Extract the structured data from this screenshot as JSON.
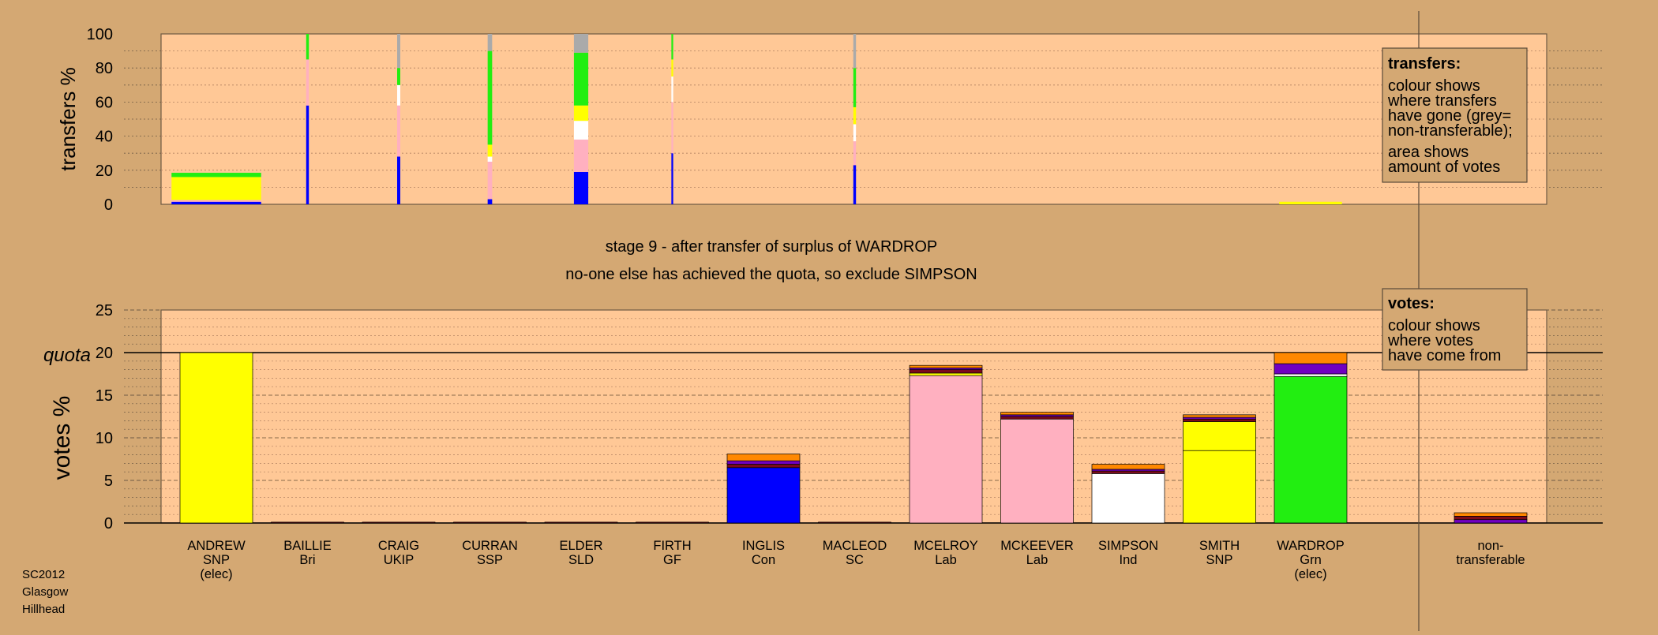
{
  "colors": {
    "background": "#d4a873",
    "plot_bg": "#ffc896",
    "SNP": "#ffff00",
    "Con": "#0000ff",
    "Lab": "#ffb0c0",
    "Ind": "#ffffff",
    "Grn": "#22ee11",
    "ukip": "#7000c0",
    "ssp": "#ff8800",
    "nt": "#aaaaaa",
    "dark": "#7a0a1a",
    "outline": "#000000"
  },
  "heading": {
    "line1": "stage 9 - after transfer of surplus of WARDROP",
    "line2": "no-one else has achieved the quota, so exclude SIMPSON"
  },
  "footer": {
    "line1": "SC2012",
    "line2": "Glasgow",
    "line3": "Hillhead"
  },
  "transfers_legend": {
    "title": "transfers:",
    "line1": "colour shows",
    "line2": "where transfers",
    "line3": "have gone (grey=",
    "line4": "non-transferable);",
    "line5": "area shows",
    "line6": "amount of votes"
  },
  "votes_legend": {
    "title": "votes:",
    "line1": "colour shows",
    "line2": "where votes",
    "line3": "have come from"
  },
  "chart_data": [
    {
      "type": "bar",
      "ylabel": "transfers %",
      "ylim": [
        0,
        100
      ],
      "yticks": [
        0,
        20,
        40,
        60,
        80,
        100
      ],
      "categories": [
        "ANDREW",
        "BAILLIE",
        "CRAIG",
        "CURRAN",
        "ELDER",
        "FIRTH",
        "INGLIS",
        "MACLEOD",
        "MCELROY",
        "MCKEEVER",
        "SIMPSON",
        "SMITH",
        "WARDROP"
      ],
      "columns": [
        {
          "name": "ANDREW",
          "width": 1.0,
          "segments": [
            [
              1.5,
              "Con"
            ],
            [
              1.0,
              "Lab"
            ],
            [
              13.5,
              "SNP"
            ],
            [
              2.5,
              "Grn"
            ]
          ]
        },
        {
          "name": "BAILLIE",
          "width": 0.03,
          "segments": [
            [
              58,
              "Con"
            ],
            [
              27,
              "Lab"
            ],
            [
              15,
              "Grn"
            ]
          ]
        },
        {
          "name": "CRAIG",
          "width": 0.035,
          "segments": [
            [
              28,
              "Con"
            ],
            [
              10,
              "Lab"
            ],
            [
              20,
              "Lab"
            ],
            [
              12,
              "Ind"
            ],
            [
              10,
              "Grn"
            ],
            [
              20,
              "nt"
            ]
          ]
        },
        {
          "name": "CURRAN",
          "width": 0.05,
          "segments": [
            [
              3,
              "Con"
            ],
            [
              22,
              "Lab"
            ],
            [
              3,
              "Ind"
            ],
            [
              7,
              "SNP"
            ],
            [
              55,
              "Grn"
            ],
            [
              10,
              "nt"
            ]
          ]
        },
        {
          "name": "ELDER",
          "width": 0.16,
          "segments": [
            [
              19,
              "Con"
            ],
            [
              19,
              "Lab"
            ],
            [
              11,
              "Ind"
            ],
            [
              9,
              "SNP"
            ],
            [
              31,
              "Grn"
            ],
            [
              11,
              "nt"
            ]
          ]
        },
        {
          "name": "FIRTH",
          "width": 0.02,
          "segments": [
            [
              30,
              "Con"
            ],
            [
              30,
              "Lab"
            ],
            [
              15,
              "Ind"
            ],
            [
              10,
              "SNP"
            ],
            [
              15,
              "Grn"
            ]
          ]
        },
        {
          "name": "MACLEOD",
          "width": 0.03,
          "segments": [
            [
              23,
              "Con"
            ],
            [
              14,
              "Lab"
            ],
            [
              10,
              "Ind"
            ],
            [
              10,
              "SNP"
            ],
            [
              23,
              "Grn"
            ],
            [
              20,
              "nt"
            ]
          ]
        },
        {
          "name": "WARDROP",
          "width": 0.7,
          "segments": [
            [
              1.5,
              "SNP"
            ]
          ]
        }
      ]
    },
    {
      "type": "bar",
      "ylabel": "votes %",
      "ylim": [
        0,
        25
      ],
      "yticks": [
        0,
        5,
        10,
        15,
        20,
        25
      ],
      "quota": 20,
      "quota_label": "quota",
      "categories": [
        "ANDREW",
        "BAILLIE",
        "CRAIG",
        "CURRAN",
        "ELDER",
        "FIRTH",
        "INGLIS",
        "MACLEOD",
        "MCELROY",
        "MCKEEVER",
        "SIMPSON",
        "SMITH",
        "WARDROP",
        "non-transferable"
      ],
      "labels": [
        [
          "ANDREW",
          "SNP",
          "(elec)"
        ],
        [
          "BAILLIE",
          "Bri"
        ],
        [
          "CRAIG",
          "UKIP"
        ],
        [
          "CURRAN",
          "SSP"
        ],
        [
          "ELDER",
          "SLD"
        ],
        [
          "FIRTH",
          "GF"
        ],
        [
          "INGLIS",
          "Con"
        ],
        [
          "MACLEOD",
          "SC"
        ],
        [
          "MCELROY",
          "Lab"
        ],
        [
          "MCKEEVER",
          "Lab"
        ],
        [
          "SIMPSON",
          "Ind"
        ],
        [
          "SMITH",
          "SNP"
        ],
        [
          "WARDROP",
          "Grn",
          "(elec)"
        ],
        [
          "non-",
          "transferable"
        ]
      ],
      "bars": [
        {
          "name": "ANDREW",
          "segments": [
            [
              20.0,
              "SNP"
            ]
          ]
        },
        {
          "name": "BAILLIE",
          "segments": [
            [
              0.1,
              "dark"
            ]
          ]
        },
        {
          "name": "CRAIG",
          "segments": [
            [
              0.1,
              "dark"
            ]
          ]
        },
        {
          "name": "CURRAN",
          "segments": [
            [
              0.1,
              "dark"
            ]
          ]
        },
        {
          "name": "ELDER",
          "segments": [
            [
              0.1,
              "dark"
            ]
          ]
        },
        {
          "name": "FIRTH",
          "segments": [
            [
              0.1,
              "dark"
            ]
          ]
        },
        {
          "name": "INGLIS",
          "segments": [
            [
              6.5,
              "Con"
            ],
            [
              0.4,
              "dark"
            ],
            [
              0.4,
              "ukip"
            ],
            [
              0.8,
              "ssp"
            ]
          ]
        },
        {
          "name": "MACLEOD",
          "segments": [
            [
              0.1,
              "dark"
            ]
          ]
        },
        {
          "name": "MCELROY",
          "segments": [
            [
              17.3,
              "Lab"
            ],
            [
              0.3,
              "SNP"
            ],
            [
              0.4,
              "dark"
            ],
            [
              0.2,
              "ukip"
            ],
            [
              0.3,
              "ssp"
            ]
          ]
        },
        {
          "name": "MCKEEVER",
          "segments": [
            [
              12.2,
              "Lab"
            ],
            [
              0.3,
              "dark"
            ],
            [
              0.2,
              "ukip"
            ],
            [
              0.3,
              "ssp"
            ]
          ]
        },
        {
          "name": "SIMPSON",
          "segments": [
            [
              5.8,
              "Ind"
            ],
            [
              0.3,
              "dark"
            ],
            [
              0.2,
              "ukip"
            ],
            [
              0.6,
              "ssp"
            ]
          ]
        },
        {
          "name": "SMITH",
          "segments": [
            [
              8.5,
              "SNP"
            ],
            [
              3.4,
              "SNP"
            ],
            [
              0.3,
              "dark"
            ],
            [
              0.2,
              "ukip"
            ],
            [
              0.3,
              "ssp"
            ]
          ]
        },
        {
          "name": "WARDROP",
          "segments": [
            [
              17.2,
              "Grn"
            ],
            [
              0.3,
              "Ind"
            ],
            [
              1.2,
              "ukip"
            ],
            [
              1.3,
              "ssp"
            ]
          ]
        },
        {
          "name": "non-transferable",
          "segments": [
            [
              0.4,
              "ukip"
            ],
            [
              0.4,
              "dark"
            ],
            [
              0.4,
              "ssp"
            ]
          ]
        }
      ]
    }
  ]
}
